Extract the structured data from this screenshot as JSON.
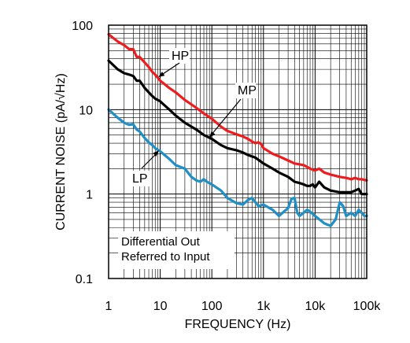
{
  "chart_data": {
    "type": "line",
    "xlabel": "FREQUENCY (Hz)",
    "ylabel": "CURRENT NOISE (pA/√Hz)",
    "x_scale": "log",
    "y_scale": "log",
    "xlim": [
      1,
      100000
    ],
    "ylim": [
      0.1,
      100
    ],
    "grid": true,
    "x_ticks": [
      {
        "value": 1,
        "label": "1"
      },
      {
        "value": 10,
        "label": "10"
      },
      {
        "value": 100,
        "label": "100"
      },
      {
        "value": 1000,
        "label": "1k"
      },
      {
        "value": 10000,
        "label": "10k"
      },
      {
        "value": 100000,
        "label": "100k"
      }
    ],
    "y_ticks": [
      {
        "value": 0.1,
        "label": "0.1"
      },
      {
        "value": 1,
        "label": "1"
      },
      {
        "value": 10,
        "label": "10"
      },
      {
        "value": 100,
        "label": "100"
      }
    ],
    "annotation_box": [
      "Differential Out",
      "Referred to Input"
    ],
    "series": [
      {
        "name": "HP",
        "color": "#ee1c1c",
        "points": [
          [
            1,
            78
          ],
          [
            1.5,
            64
          ],
          [
            2,
            58
          ],
          [
            2.5,
            52
          ],
          [
            3,
            52
          ],
          [
            3.5,
            42
          ],
          [
            4,
            42
          ],
          [
            5,
            36
          ],
          [
            6,
            32
          ],
          [
            7,
            28
          ],
          [
            8,
            26
          ],
          [
            10,
            22
          ],
          [
            15,
            18
          ],
          [
            20,
            16
          ],
          [
            30,
            13
          ],
          [
            50,
            10.5
          ],
          [
            70,
            9
          ],
          [
            100,
            7.8
          ],
          [
            150,
            6.3
          ],
          [
            200,
            5.6
          ],
          [
            300,
            5.1
          ],
          [
            400,
            4.8
          ],
          [
            500,
            4.5
          ],
          [
            600,
            4.2
          ],
          [
            700,
            4.0
          ],
          [
            800,
            4.1
          ],
          [
            900,
            3.9
          ],
          [
            1000,
            3.5
          ],
          [
            1500,
            3.0
          ],
          [
            2000,
            2.8
          ],
          [
            3000,
            2.5
          ],
          [
            4000,
            2.3
          ],
          [
            5000,
            2.25
          ],
          [
            6000,
            2.2
          ],
          [
            7000,
            2.1
          ],
          [
            8000,
            2.0
          ],
          [
            10000,
            1.9
          ],
          [
            12000,
            2.0
          ],
          [
            15000,
            1.8
          ],
          [
            20000,
            1.7
          ],
          [
            30000,
            1.6
          ],
          [
            40000,
            1.55
          ],
          [
            50000,
            1.5
          ],
          [
            60000,
            1.55
          ],
          [
            70000,
            1.5
          ],
          [
            80000,
            1.5
          ],
          [
            100000,
            1.45
          ]
        ]
      },
      {
        "name": "MP",
        "color": "#000000",
        "points": [
          [
            1,
            38
          ],
          [
            1.5,
            30
          ],
          [
            2,
            27
          ],
          [
            2.5,
            26
          ],
          [
            3,
            25
          ],
          [
            3.5,
            22
          ],
          [
            4,
            22
          ],
          [
            5,
            18
          ],
          [
            6,
            16
          ],
          [
            7,
            14.5
          ],
          [
            8,
            13.5
          ],
          [
            10,
            12.5
          ],
          [
            15,
            10
          ],
          [
            20,
            8.5
          ],
          [
            30,
            7
          ],
          [
            50,
            5.8
          ],
          [
            70,
            5
          ],
          [
            100,
            4.5
          ],
          [
            150,
            3.8
          ],
          [
            200,
            3.5
          ],
          [
            300,
            3.3
          ],
          [
            400,
            3.1
          ],
          [
            500,
            2.9
          ],
          [
            700,
            2.7
          ],
          [
            1000,
            2.3
          ],
          [
            1500,
            2.0
          ],
          [
            2000,
            1.8
          ],
          [
            3000,
            1.6
          ],
          [
            4000,
            1.4
          ],
          [
            5000,
            1.35
          ],
          [
            6000,
            1.3
          ],
          [
            7000,
            1.25
          ],
          [
            8000,
            1.25
          ],
          [
            9000,
            1.3
          ],
          [
            10000,
            1.2
          ],
          [
            12000,
            1.4
          ],
          [
            15000,
            1.2
          ],
          [
            20000,
            1.1
          ],
          [
            30000,
            1.05
          ],
          [
            50000,
            1.05
          ],
          [
            60000,
            1.1
          ],
          [
            70000,
            1.15
          ],
          [
            80000,
            1.0
          ],
          [
            100000,
            1.0
          ]
        ]
      },
      {
        "name": "LP",
        "color": "#1f8fc7",
        "points": [
          [
            1,
            10
          ],
          [
            1.5,
            8
          ],
          [
            2,
            7
          ],
          [
            2.5,
            6.6
          ],
          [
            3,
            6.7
          ],
          [
            3.5,
            5.8
          ],
          [
            4,
            5.5
          ],
          [
            5,
            4.6
          ],
          [
            6,
            4.1
          ],
          [
            7,
            3.8
          ],
          [
            8,
            3.5
          ],
          [
            10,
            3.2
          ],
          [
            15,
            2.6
          ],
          [
            20,
            2.2
          ],
          [
            30,
            2.0
          ],
          [
            40,
            1.6
          ],
          [
            50,
            1.45
          ],
          [
            60,
            1.4
          ],
          [
            70,
            1.5
          ],
          [
            80,
            1.4
          ],
          [
            100,
            1.3
          ],
          [
            150,
            1.1
          ],
          [
            200,
            0.9
          ],
          [
            300,
            0.78
          ],
          [
            400,
            0.75
          ],
          [
            500,
            0.85
          ],
          [
            600,
            0.9
          ],
          [
            700,
            0.8
          ],
          [
            800,
            0.72
          ],
          [
            1000,
            0.75
          ],
          [
            1500,
            0.65
          ],
          [
            2000,
            0.55
          ],
          [
            2500,
            0.62
          ],
          [
            3000,
            0.68
          ],
          [
            3500,
            0.88
          ],
          [
            4000,
            0.9
          ],
          [
            4500,
            0.6
          ],
          [
            5000,
            0.55
          ],
          [
            6000,
            0.6
          ],
          [
            7000,
            0.65
          ],
          [
            8000,
            0.62
          ],
          [
            10000,
            0.55
          ],
          [
            15000,
            0.45
          ],
          [
            20000,
            0.42
          ],
          [
            25000,
            0.5
          ],
          [
            30000,
            0.8
          ],
          [
            35000,
            0.72
          ],
          [
            40000,
            0.55
          ],
          [
            50000,
            0.6
          ],
          [
            60000,
            0.55
          ],
          [
            70000,
            0.65
          ],
          [
            80000,
            0.6
          ],
          [
            90000,
            0.55
          ],
          [
            100000,
            0.55
          ]
        ]
      }
    ],
    "labels": [
      {
        "series": "HP",
        "text": "HP"
      },
      {
        "series": "MP",
        "text": "MP"
      },
      {
        "series": "LP",
        "text": "LP"
      }
    ]
  }
}
